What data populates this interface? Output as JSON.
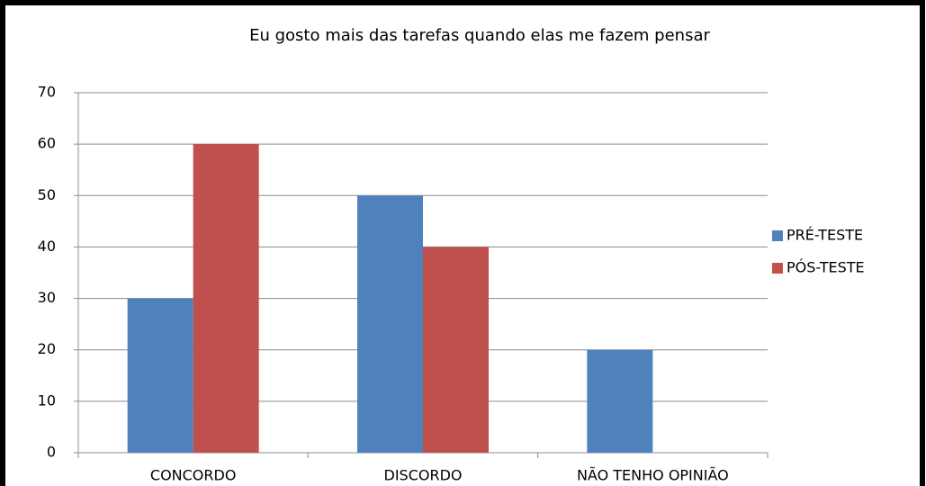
{
  "chart_data": {
    "type": "bar",
    "title": "Eu gosto mais das tarefas quando elas me fazem pensar",
    "categories": [
      "CONCORDO",
      "DISCORDO",
      "NÃO TENHO OPINIÃO"
    ],
    "series": [
      {
        "name": "PRÉ-TESTE",
        "color": "#4f81bd",
        "values": [
          30,
          50,
          20
        ]
      },
      {
        "name": "PÓS-TESTE",
        "color": "#c0504d",
        "values": [
          60,
          40,
          0
        ]
      }
    ],
    "ylim": [
      0,
      70
    ],
    "yticks": [
      0,
      10,
      20,
      30,
      40,
      50,
      60,
      70
    ],
    "grid": true,
    "legend": "right"
  }
}
